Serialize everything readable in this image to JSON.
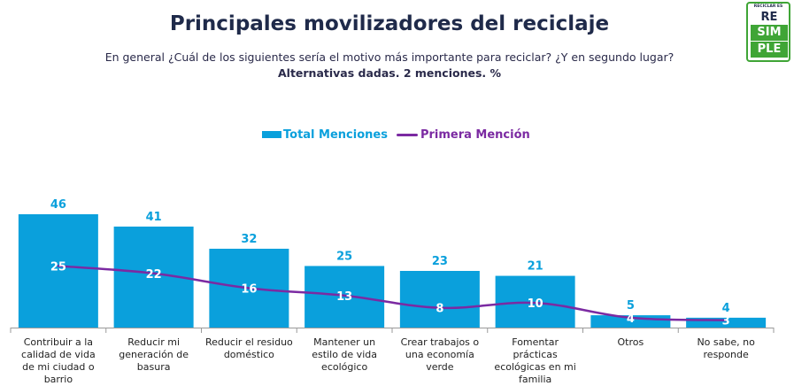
{
  "header": {
    "title": "Principales movilizadores del reciclaje",
    "subtitle": "En general ¿Cuál de los siguientes sería el motivo más importante para reciclar? ¿Y en segundo lugar?",
    "subtitle_bold": "Alternativas dadas. 2 menciones. %"
  },
  "logo": {
    "tagline": "RECICLAR ES",
    "line1": "RE",
    "line2": "SIM",
    "line3": "PLE",
    "brand_color": "#3fa536"
  },
  "legend": {
    "total_label": "Total Menciones",
    "first_label": "Primera Mención"
  },
  "colors": {
    "bar": "#0aa0dc",
    "line": "#7b2aa2",
    "bar_label": "#0aa0dc",
    "inner_label": "#ffffff"
  },
  "chart_data": {
    "type": "bar",
    "categories": [
      "Contribuir a la calidad de vida de mi ciudad o barrio",
      "Reducir mi generación de basura",
      "Reducir el residuo doméstico",
      "Mantener un estilo de vida ecológico",
      "Crear trabajos o una economía verde",
      "Fomentar prácticas ecológicas en mi familia",
      "Otros",
      "No sabe, no responde"
    ],
    "series": [
      {
        "name": "Total Menciones",
        "type": "bar",
        "values": [
          46,
          41,
          32,
          25,
          23,
          21,
          5,
          4
        ]
      },
      {
        "name": "Primera Mención",
        "type": "line",
        "values": [
          25,
          22,
          16,
          13,
          8,
          10,
          4,
          3
        ]
      }
    ],
    "ylim": [
      0,
      46
    ],
    "grid": false,
    "legend_position": "top-center"
  }
}
